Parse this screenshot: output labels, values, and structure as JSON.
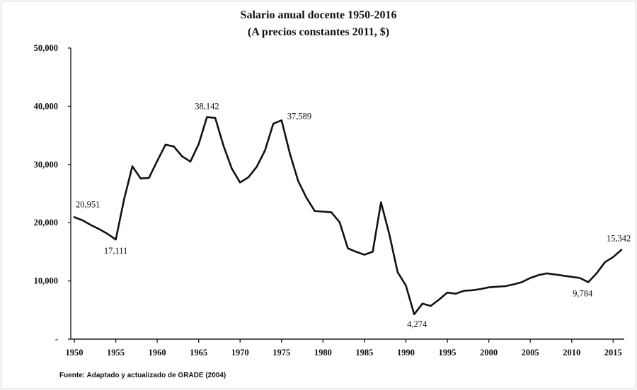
{
  "chart_data": {
    "type": "line",
    "title": "Salario anual docente 1950-2016",
    "subtitle": "(A precios constantes 2011, $)",
    "source": "Fuente: Adaptado y actualizado de GRADE (2004)",
    "xlabel": "",
    "ylabel": "",
    "xlim": [
      1950,
      2016
    ],
    "ylim": [
      0,
      50000
    ],
    "grid": false,
    "legend": "none",
    "y_ticks": [
      0,
      10000,
      20000,
      30000,
      40000,
      50000
    ],
    "y_tick_labels": [
      "-",
      "10,000",
      "20,000",
      "30,000",
      "40,000",
      "50,000"
    ],
    "x_ticks": [
      1950,
      1955,
      1960,
      1965,
      1970,
      1975,
      1980,
      1985,
      1990,
      1995,
      2000,
      2005,
      2010,
      2015
    ],
    "x_tick_labels": [
      "1950",
      "1955",
      "1960",
      "1965",
      "1970",
      "1975",
      "1980",
      "1985",
      "1990",
      "1995",
      "2000",
      "2005",
      "2010",
      "2015"
    ],
    "series": [
      {
        "name": "Salario anual docente",
        "color": "#111111",
        "x": [
          1950,
          1951,
          1952,
          1953,
          1954,
          1955,
          1956,
          1957,
          1958,
          1959,
          1960,
          1961,
          1962,
          1963,
          1964,
          1965,
          1966,
          1967,
          1968,
          1969,
          1970,
          1971,
          1972,
          1973,
          1974,
          1975,
          1976,
          1977,
          1978,
          1979,
          1980,
          1981,
          1982,
          1983,
          1984,
          1985,
          1986,
          1987,
          1988,
          1989,
          1990,
          1991,
          1992,
          1993,
          1994,
          1995,
          1996,
          1997,
          1998,
          1999,
          2000,
          2001,
          2002,
          2003,
          2004,
          2005,
          2006,
          2007,
          2008,
          2009,
          2010,
          2011,
          2012,
          2013,
          2014,
          2015,
          2016
        ],
        "values": [
          20951,
          20400,
          19600,
          18900,
          18100,
          17111,
          24000,
          29700,
          27600,
          27700,
          30600,
          33400,
          33100,
          31400,
          30500,
          33500,
          38142,
          38000,
          33200,
          29300,
          26900,
          27800,
          29600,
          32400,
          37000,
          37589,
          31900,
          27200,
          24300,
          22000,
          21900,
          21800,
          20100,
          15600,
          15000,
          14500,
          15000,
          23500,
          18000,
          11500,
          9200,
          4274,
          6100,
          5700,
          6800,
          8000,
          7800,
          8300,
          8400,
          8600,
          8900,
          9000,
          9100,
          9400,
          9800,
          10500,
          11000,
          11300,
          11100,
          10900,
          10700,
          10500,
          9784,
          11300,
          13200,
          14100,
          15342
        ]
      }
    ],
    "annotations": [
      {
        "x": 1950,
        "y": 20951,
        "text": "20,951"
      },
      {
        "x": 1955,
        "y": 17111,
        "text": "17,111"
      },
      {
        "x": 1966,
        "y": 38142,
        "text": "38,142"
      },
      {
        "x": 1975,
        "y": 37589,
        "text": "37,589"
      },
      {
        "x": 1991,
        "y": 4274,
        "text": "4,274"
      },
      {
        "x": 2012,
        "y": 9784,
        "text": "9,784"
      },
      {
        "x": 2016,
        "y": 15342,
        "text": "15,342"
      }
    ]
  }
}
